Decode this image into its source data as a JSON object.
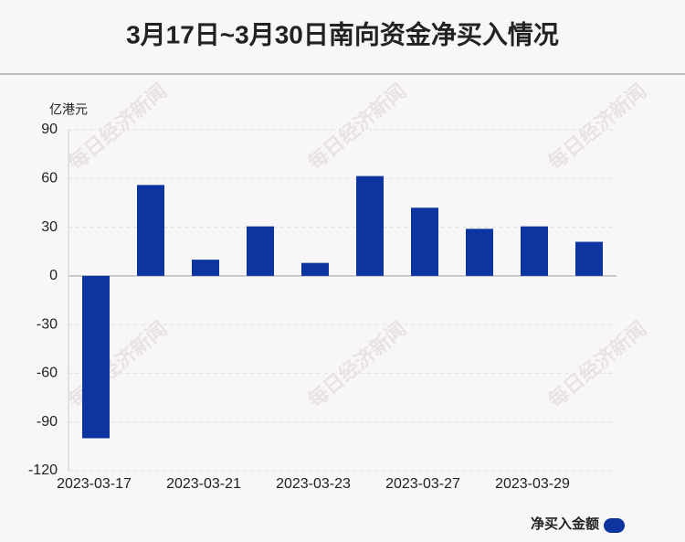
{
  "chart_data": {
    "type": "bar",
    "title": "3月17日~3月30日南向资金净买入情况",
    "y_axis_label": "亿港元",
    "watermark": "每日经济新闻",
    "categories": [
      "2023-03-17",
      null,
      "2023-03-21",
      null,
      "2023-03-23",
      null,
      "2023-03-27",
      null,
      "2023-03-29",
      null
    ],
    "series": [
      {
        "name": "净买入金额",
        "color": "#0d35a0",
        "values": [
          -100,
          56,
          10,
          30.5,
          8,
          61.5,
          42,
          29,
          30.5,
          21
        ]
      }
    ],
    "ylim": [
      -120,
      90
    ],
    "yticks": [
      -120,
      -90,
      -60,
      -30,
      0,
      30,
      60,
      90
    ],
    "grid": true,
    "legend": "bottom-right"
  }
}
